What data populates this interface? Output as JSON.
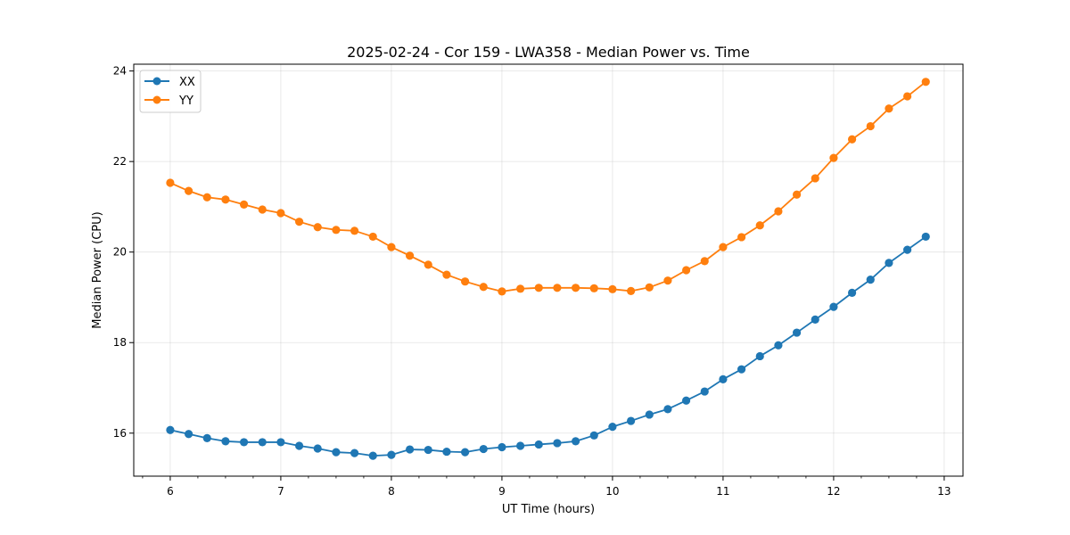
{
  "chart_data": {
    "type": "line",
    "title": "2025-02-24 - Cor 159 - LWA358 - Median Power vs. Time",
    "xlabel": "UT Time (hours)",
    "ylabel": "Median Power (CPU)",
    "xlim": [
      5.67,
      13.17
    ],
    "ylim": [
      15.05,
      24.15
    ],
    "xticks": [
      6,
      7,
      8,
      9,
      10,
      11,
      12,
      13
    ],
    "yticks": [
      16,
      18,
      20,
      22,
      24
    ],
    "grid": true,
    "legend_position": "top-left",
    "x": [
      6.0,
      6.1667,
      6.3333,
      6.5,
      6.6667,
      6.8333,
      7.0,
      7.1667,
      7.3333,
      7.5,
      7.6667,
      7.8333,
      8.0,
      8.1667,
      8.3333,
      8.5,
      8.6667,
      8.8333,
      9.0,
      9.1667,
      9.3333,
      9.5,
      9.6667,
      9.8333,
      10.0,
      10.1667,
      10.3333,
      10.5,
      10.6667,
      10.8333,
      11.0,
      11.1667,
      11.3333,
      11.5,
      11.6667,
      11.8333,
      12.0,
      12.1667,
      12.3333,
      12.5,
      12.6667,
      12.8333
    ],
    "series": [
      {
        "name": "XX",
        "color": "#1f77b4",
        "values": [
          16.07,
          15.98,
          15.89,
          15.82,
          15.8,
          15.8,
          15.8,
          15.72,
          15.66,
          15.58,
          15.56,
          15.5,
          15.52,
          15.64,
          15.63,
          15.59,
          15.58,
          15.65,
          15.69,
          15.72,
          15.75,
          15.78,
          15.82,
          15.95,
          16.14,
          16.27,
          16.41,
          16.53,
          16.72,
          16.92,
          17.19,
          17.41,
          17.7,
          17.94,
          18.22,
          18.51,
          18.79,
          19.1,
          19.39,
          19.76,
          20.05,
          20.34
        ]
      },
      {
        "name": "YY",
        "color": "#ff7f0e",
        "values": [
          21.53,
          21.35,
          21.21,
          21.16,
          21.05,
          20.94,
          20.86,
          20.67,
          20.55,
          20.49,
          20.47,
          20.34,
          20.11,
          19.92,
          19.72,
          19.5,
          19.35,
          19.23,
          19.13,
          19.19,
          19.21,
          19.21,
          19.21,
          19.2,
          19.18,
          19.14,
          19.22,
          19.37,
          19.6,
          19.8,
          20.11,
          20.33,
          20.59,
          20.9,
          21.27,
          21.63,
          22.08,
          22.49,
          22.78,
          23.17,
          23.44,
          23.76
        ]
      }
    ]
  }
}
